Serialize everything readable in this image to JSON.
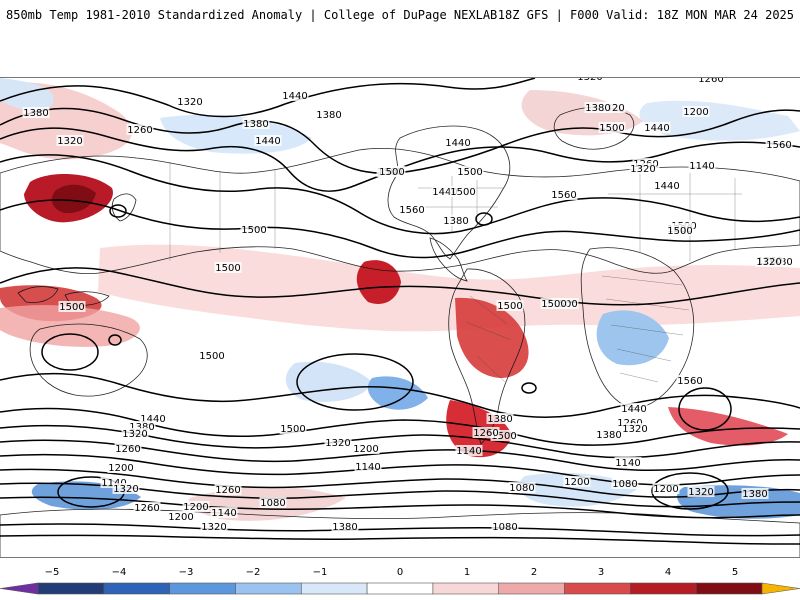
{
  "header": {
    "title_left": "850mb Temp 1981-2010 Standardized Anomaly | College of DuPage NEXLAB",
    "title_right": "18Z GFS | F000 Valid: 18Z MON MAR 24 2025"
  },
  "map": {
    "projection": "equirectangular",
    "variable": "850mb temperature standardized anomaly",
    "contour_variable": "850mb geopotential height",
    "contour_levels_seen": [
      "1080",
      "1140",
      "1200",
      "1260",
      "1320",
      "1380",
      "1440",
      "1500",
      "1560"
    ],
    "contour_labels": [
      "1380",
      "1440",
      "1320",
      "1380",
      "1260",
      "1380",
      "1320",
      "1440",
      "1380",
      "1500",
      "1560",
      "1320",
      "1380",
      "1440",
      "1500",
      "1500",
      "1500",
      "1500",
      "1500",
      "1500",
      "1560",
      "1500",
      "1500",
      "1440",
      "1500",
      "1500",
      "1500",
      "1320",
      "1380",
      "1440",
      "1260",
      "1200",
      "1560",
      "1260",
      "1320",
      "1440",
      "1380",
      "1260",
      "1320",
      "1200",
      "1140",
      "1500",
      "1560",
      "1500",
      "1440",
      "1260",
      "1320",
      "1380",
      "1200",
      "1080",
      "1380",
      "1320",
      "1200",
      "1140",
      "1080",
      "1440",
      "1380",
      "1320",
      "1260",
      "1200",
      "1140",
      "1320",
      "1260",
      "1200",
      "1140",
      "1080",
      "1200",
      "1260",
      "1320",
      "1380",
      "1320",
      "1200",
      "1140",
      "1500",
      "1500",
      "1380",
      "1260",
      "1140",
      "1080"
    ],
    "anomaly_colors": {
      "neutral": "#ffffff",
      "weak_positive": "#fbdede",
      "moderate_positive": "#f2a9a9",
      "strong_positive": "#d93b3b",
      "extreme_positive": "#a40f18",
      "weak_negative": "#dbe9f9",
      "moderate_negative": "#9bc3ef",
      "strong_negative": "#4c8fd8",
      "extreme_negative": "#1e4f98"
    },
    "features": [
      "contour-lines",
      "coastline",
      "country-borders",
      "anomaly-fill"
    ]
  },
  "colorbar": {
    "ticks": [
      "−5",
      "−4",
      "−3",
      "−2",
      "−1",
      "0",
      "1",
      "2",
      "3",
      "4",
      "5"
    ],
    "colors": [
      "#6f2fa0",
      "#243c76",
      "#2e63b8",
      "#5c97de",
      "#9bc3ef",
      "#d8e8f8",
      "#ffffff",
      "#f7d7d7",
      "#eeaaaa",
      "#d94a4a",
      "#b51c24",
      "#7f0d13",
      "#f4b400"
    ]
  }
}
